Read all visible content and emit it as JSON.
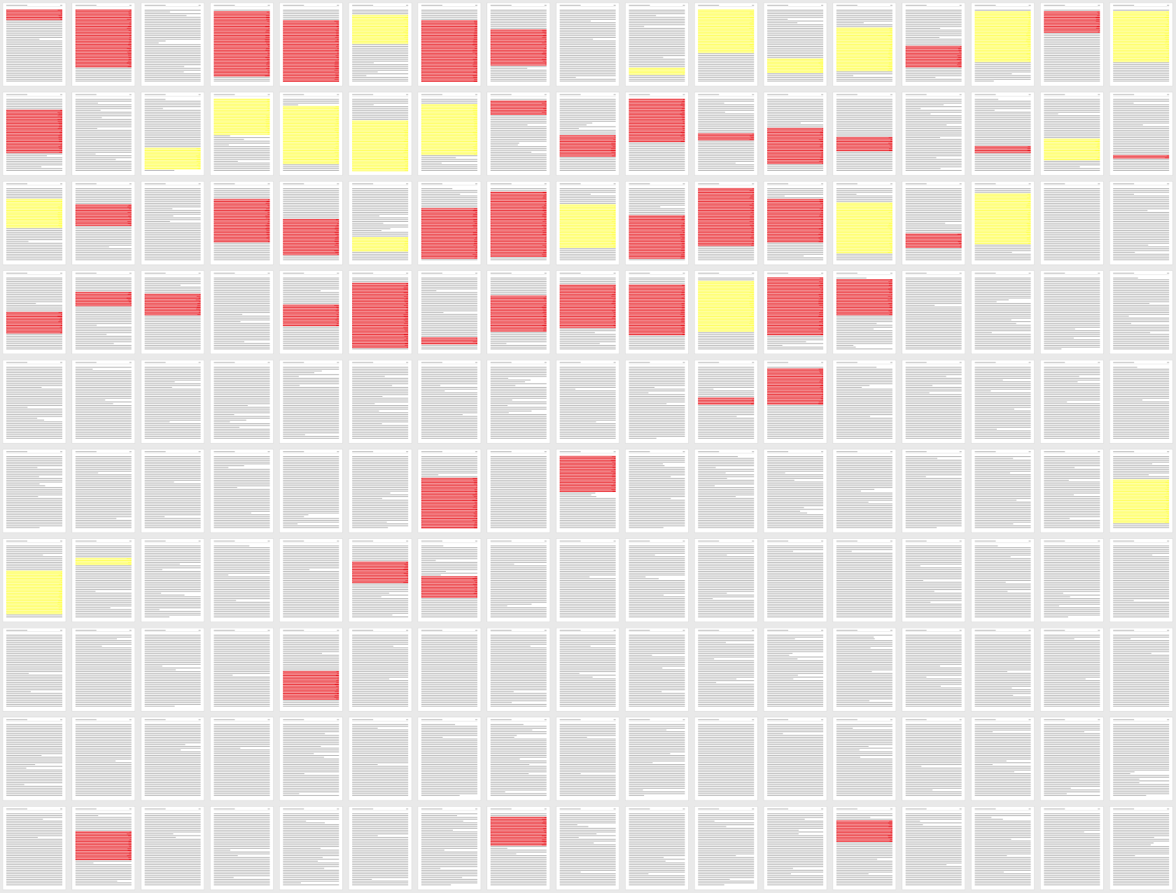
{
  "pages": [
    [
      "#e8232a",
      0.15
    ],
    [
      "#e8232a",
      0.8
    ],
    null,
    [
      "#e8232a",
      0.9
    ],
    [
      "#e8232a",
      0.85
    ],
    [
      "#ffff4d",
      0.4
    ],
    [
      "#e8232a",
      0.85
    ],
    [
      "#e8232a",
      0.5
    ],
    null,
    [
      "#ffff4d",
      0.1
    ],
    [
      "#ffff4d",
      0.6
    ],
    [
      "#ffff4d",
      0.2
    ],
    [
      "#ffff4d",
      0.6
    ],
    [
      "#e8232a",
      0.3
    ],
    [
      "#ffff4d",
      0.7
    ],
    [
      "#e8232a",
      0.3
    ],
    [
      "#ffff4d",
      0.7
    ],
    [
      "#e8232a",
      0.6
    ],
    null,
    [
      "#ffff4d",
      0.3
    ],
    [
      "#ffff4d",
      0.5
    ],
    [
      "#ffff4d",
      0.8
    ],
    [
      "#ffff4d",
      0.7
    ],
    [
      "#ffff4d",
      0.7
    ],
    [
      "#e8232a",
      0.2
    ],
    [
      "#e8232a",
      0.3
    ],
    [
      "#e8232a",
      0.6
    ],
    [
      "#e8232a",
      0.1
    ],
    [
      "#e8232a",
      0.5
    ],
    [
      "#e8232a",
      0.2
    ],
    null,
    [
      "#e8232a",
      0.1
    ],
    [
      "#ffff4d",
      0.3
    ],
    [
      "#e8232a",
      0.05
    ],
    [
      "#ffff4d",
      0.4
    ],
    [
      "#e8232a",
      0.3
    ],
    null,
    [
      "#e8232a",
      0.6
    ],
    [
      "#e8232a",
      0.5
    ],
    [
      "#ffff4d",
      0.2
    ],
    [
      "#e8232a",
      0.7
    ],
    [
      "#e8232a",
      0.9
    ],
    [
      "#ffff4d",
      0.6
    ],
    [
      "#e8232a",
      0.6
    ],
    [
      "#e8232a",
      0.8
    ],
    [
      "#e8232a",
      0.6
    ],
    [
      "#ffff4d",
      0.7
    ],
    [
      "#e8232a",
      0.2
    ],
    [
      "#ffff4d",
      0.7
    ],
    null,
    null,
    [
      "#e8232a",
      0.3
    ],
    [
      "#e8232a",
      0.2
    ],
    [
      "#e8232a",
      0.3
    ],
    null,
    [
      "#e8232a",
      0.3
    ],
    [
      "#e8232a",
      0.9
    ],
    [
      "#e8232a",
      0.1
    ],
    [
      "#e8232a",
      0.5
    ],
    [
      "#e8232a",
      0.6
    ],
    [
      "#e8232a",
      0.7
    ],
    [
      "#ffff4d",
      0.7
    ],
    [
      "#e8232a",
      0.8
    ],
    [
      "#e8232a",
      0.5
    ],
    null,
    null,
    null,
    null,
    null,
    null,
    null,
    null,
    null,
    null,
    null,
    null,
    null,
    null,
    [
      "#e8232a",
      0.1
    ],
    [
      "#e8232a",
      0.5
    ],
    null,
    null,
    null,
    null,
    null,
    null,
    null,
    null,
    null,
    null,
    null,
    [
      "#e8232a",
      0.7
    ],
    null,
    [
      "#e8232a",
      0.5
    ],
    null,
    null,
    null,
    null,
    null,
    null,
    null,
    [
      "#ffff4d",
      0.6
    ],
    [
      "#ffff4d",
      0.6
    ],
    [
      "#ffff4d",
      0.1
    ],
    null,
    null,
    null,
    [
      "#e8232a",
      0.3
    ],
    [
      "#e8232a",
      0.3
    ],
    null,
    null,
    null,
    null,
    null,
    null,
    null,
    null,
    null,
    null,
    null,
    null,
    null,
    null,
    [
      "#e8232a",
      0.4
    ],
    null,
    null,
    null,
    null,
    null,
    null,
    null,
    null,
    null,
    null,
    null,
    null,
    null,
    null,
    null,
    null,
    null,
    null,
    null,
    null,
    null,
    null,
    null,
    null,
    null,
    null,
    null,
    null,
    null,
    null,
    [
      "#e8232a",
      0.4
    ],
    null,
    null,
    null,
    null,
    null,
    [
      "#e8232a",
      0.4
    ],
    null,
    null,
    null,
    null,
    [
      "#e8232a",
      0.3
    ],
    null,
    null,
    null,
    null
  ]
}
